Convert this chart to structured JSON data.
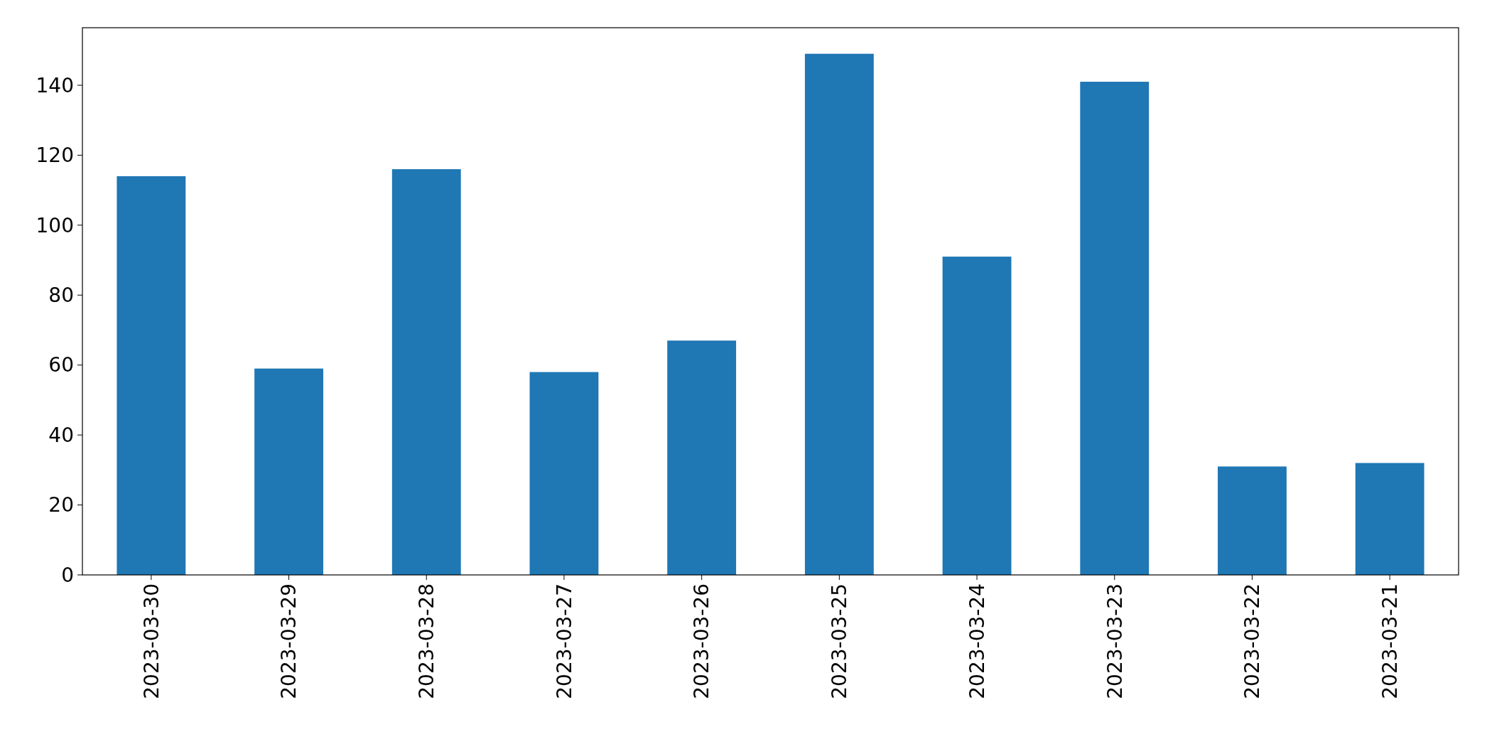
{
  "chart_data": {
    "type": "bar",
    "categories": [
      "2023-03-30",
      "2023-03-29",
      "2023-03-28",
      "2023-03-27",
      "2023-03-26",
      "2023-03-25",
      "2023-03-24",
      "2023-03-23",
      "2023-03-22",
      "2023-03-21"
    ],
    "values": [
      114,
      59,
      116,
      58,
      67,
      149,
      91,
      141,
      31,
      32
    ],
    "color": "#1f77b4",
    "ylim": [
      0,
      156.45
    ],
    "yticks": [
      0,
      20,
      40,
      60,
      80,
      100,
      120,
      140
    ],
    "grid": false
  }
}
